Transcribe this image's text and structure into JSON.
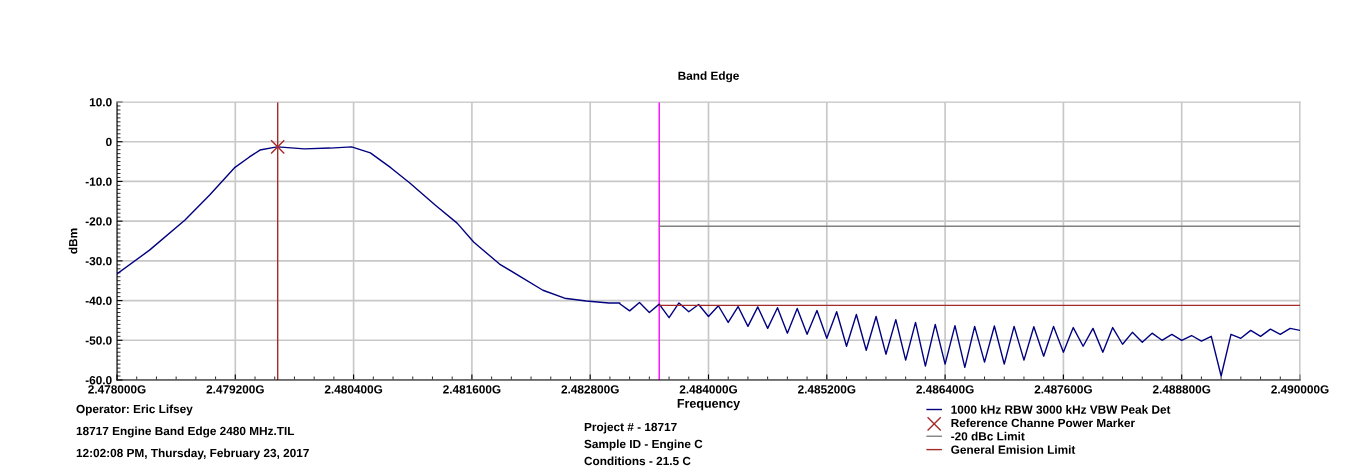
{
  "chart_data": {
    "type": "line",
    "title": "Band Edge",
    "xlabel": "Frequency",
    "ylabel": "dBm",
    "xlim": [
      2.478,
      2.49
    ],
    "ylim": [
      -60,
      10
    ],
    "xticks": [
      {
        "value": 2.478,
        "label": "2.478000G"
      },
      {
        "value": 2.4792,
        "label": "2.479200G"
      },
      {
        "value": 2.4804,
        "label": "2.480400G"
      },
      {
        "value": 2.4816,
        "label": "2.481600G"
      },
      {
        "value": 2.4828,
        "label": "2.482800G"
      },
      {
        "value": 2.484,
        "label": "2.484000G"
      },
      {
        "value": 2.4852,
        "label": "2.485200G"
      },
      {
        "value": 2.4864,
        "label": "2.486400G"
      },
      {
        "value": 2.4876,
        "label": "2.487600G"
      },
      {
        "value": 2.4888,
        "label": "2.488800G"
      },
      {
        "value": 2.49,
        "label": "2.490000G"
      }
    ],
    "yticks": [
      {
        "value": 10,
        "label": "10.0"
      },
      0,
      {
        "value": -10,
        "label": "-10.0"
      },
      {
        "value": -20,
        "label": "-20.0"
      },
      {
        "value": -30,
        "label": "-30.0"
      },
      {
        "value": -40,
        "label": "-40.0"
      },
      {
        "value": -50,
        "label": "-50.0"
      },
      {
        "value": -60,
        "label": "-60.0"
      }
    ],
    "grid": true,
    "legend": "bottom right",
    "series": [
      {
        "name": "1000 kHz RBW 3000 kHz VBW Peak Det",
        "color": "#000080",
        "x": [
          2.478,
          2.47833,
          2.47869,
          2.47894,
          2.47919,
          2.47934,
          2.47945,
          2.47958,
          2.47963,
          2.4799,
          2.48016,
          2.48038,
          2.48057,
          2.48078,
          2.48097,
          2.48123,
          2.48145,
          2.48162,
          2.48188,
          2.4821,
          2.48232,
          2.48254,
          2.48276,
          2.48299,
          2.4831,
          2.4831,
          2.4832,
          2.4833,
          2.4834,
          2.4835,
          2.4836,
          2.4837,
          2.4838,
          2.4839,
          2.484,
          2.4841,
          2.4842,
          2.4843,
          2.4844,
          2.4845,
          2.4846,
          2.4847,
          2.4848,
          2.4849,
          2.485,
          2.4851,
          2.4852,
          2.4853,
          2.4854,
          2.4855,
          2.4856,
          2.4857,
          2.4858,
          2.4859,
          2.486,
          2.4861,
          2.4862,
          2.4863,
          2.4864,
          2.4865,
          2.4866,
          2.4867,
          2.4868,
          2.4869,
          2.487,
          2.4871,
          2.4872,
          2.4873,
          2.4874,
          2.4875,
          2.4876,
          2.4877,
          2.4878,
          2.4879,
          2.488,
          2.4881,
          2.4882,
          2.4883,
          2.4884,
          2.4885,
          2.4886,
          2.4887,
          2.4888,
          2.4889,
          2.489,
          2.4891,
          2.4892,
          2.4893,
          2.4894,
          2.4895,
          2.4896,
          2.4897,
          2.4898,
          2.4899,
          2.49
        ],
        "values": [
          -33.3,
          -27.3,
          -19.7,
          -13.4,
          -6.6,
          -3.9,
          -2.1,
          -1.5,
          -1.3,
          -1.8,
          -1.6,
          -1.3,
          -2.8,
          -6.6,
          -10.4,
          -16,
          -20.5,
          -25.3,
          -30.8,
          -34.1,
          -37.4,
          -39.4,
          -40.1,
          -40.6,
          -40.6,
          -40.8,
          -42.6,
          -40.5,
          -43.0,
          -40.9,
          -44.3,
          -40.6,
          -42.8,
          -41.0,
          -44.0,
          -41.3,
          -45.5,
          -41.5,
          -46.5,
          -41.6,
          -47.0,
          -41.8,
          -48.2,
          -42.0,
          -48.5,
          -42.5,
          -49.5,
          -42.8,
          -51.5,
          -43.5,
          -52.5,
          -44.0,
          -53.5,
          -44.8,
          -55.0,
          -45.5,
          -56.5,
          -46.0,
          -56.0,
          -46.3,
          -56.8,
          -46.5,
          -55.5,
          -46.4,
          -56.0,
          -46.5,
          -55.0,
          -46.6,
          -54.0,
          -46.5,
          -53.0,
          -46.8,
          -51.5,
          -47.0,
          -53.0,
          -46.8,
          -51.0,
          -48.0,
          -50.5,
          -48.2,
          -50.0,
          -48.5,
          -50.0,
          -48.8,
          -50.2,
          -49.0,
          -59.0,
          -48.5,
          -49.5,
          -47.5,
          -49.0,
          -47.2,
          -48.5,
          -47.0,
          -47.5
        ]
      },
      {
        "name": "Reference Channe Power Marker",
        "type": "scatter",
        "marker": "cross",
        "color": "#a52a2a",
        "x": [
          2.47963
        ],
        "values": [
          -1.3
        ]
      },
      {
        "name": "-20 dBc Limit",
        "type": "line",
        "color": "#808080",
        "x": [
          2.4835,
          2.49
        ],
        "values": [
          -21.3,
          -21.3
        ]
      },
      {
        "name": "General Emision Limit",
        "type": "line",
        "color": "#a52a2a",
        "x": [
          2.4835,
          2.49
        ],
        "values": [
          -41.2,
          -41.2
        ]
      }
    ],
    "ref_lines": [
      {
        "axis": "x",
        "value": 2.47963,
        "color": "#a52a2a"
      },
      {
        "axis": "x",
        "value": 2.4835,
        "color": "#ff00ff"
      }
    ],
    "annotations": [
      "Operator: Eric Lifsey",
      "18717 Engine Band Edge 2480 MHz.TIL",
      "12:02:08 PM, Thursday, February 23, 2017",
      "Project # - 18717",
      "Sample ID - Engine C",
      "Conditions - 21.5 C"
    ]
  }
}
